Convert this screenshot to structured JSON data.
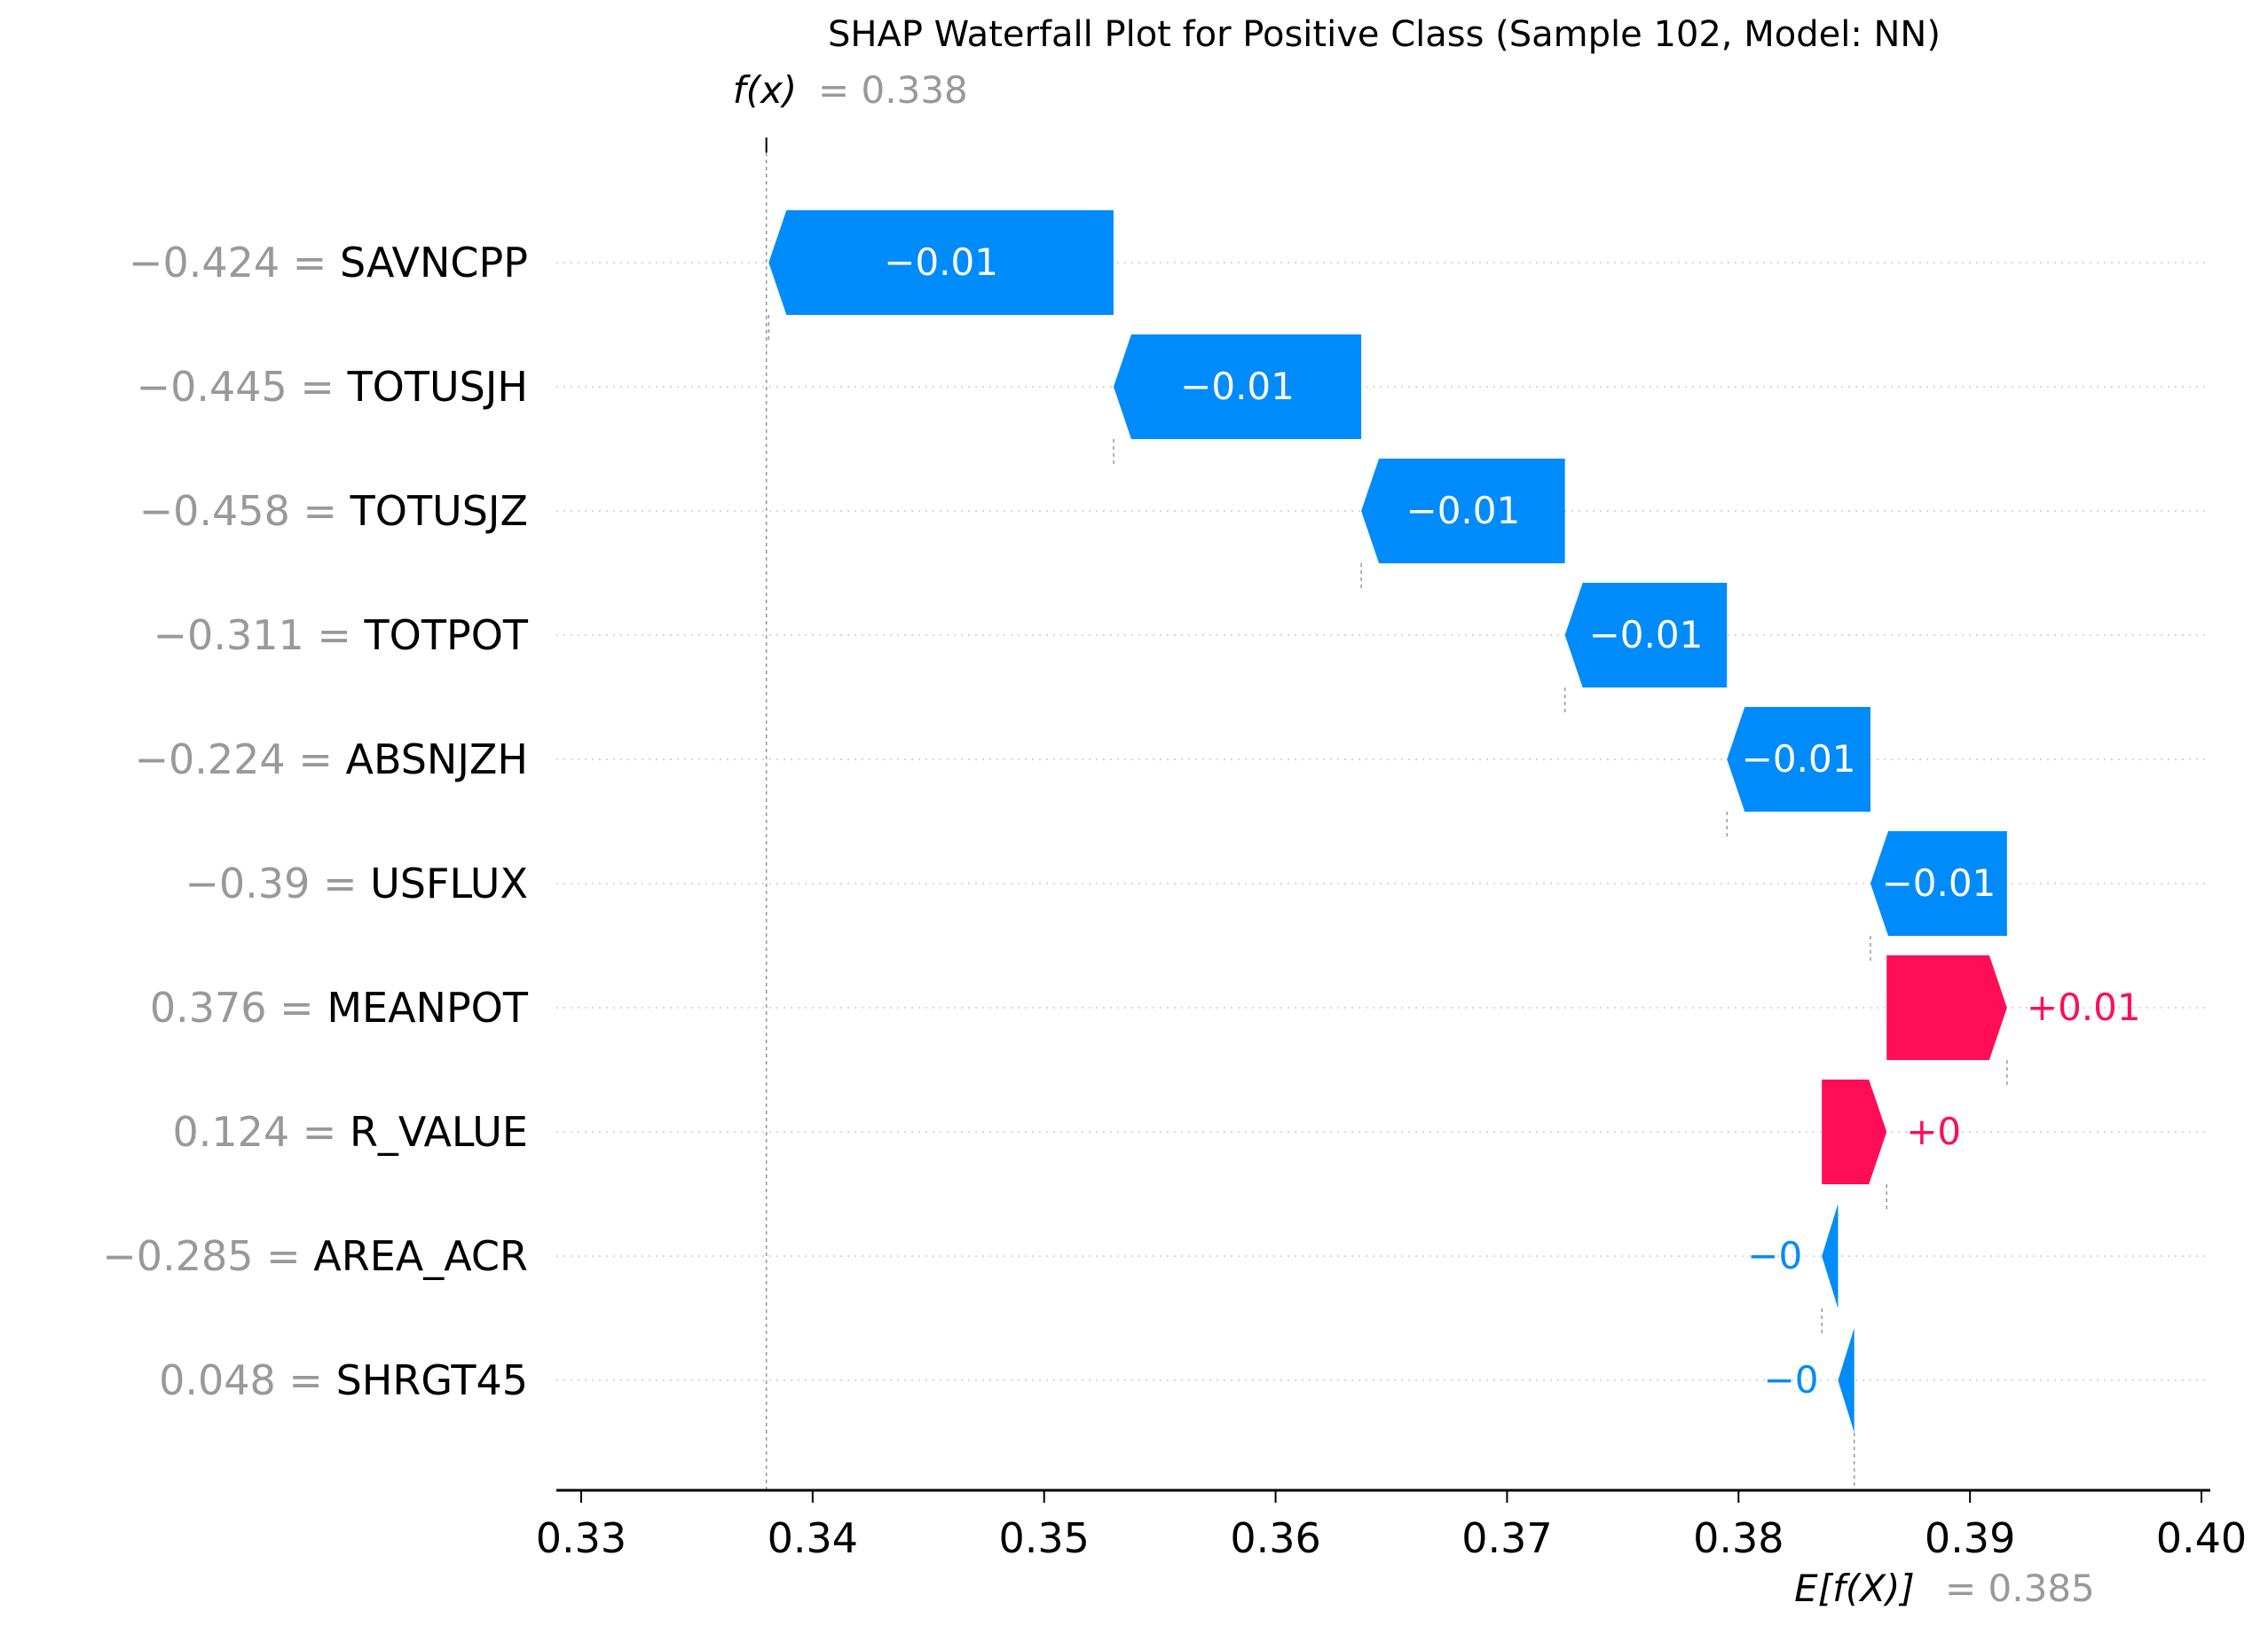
{
  "chart_data": {
    "type": "waterfall",
    "title": "SHAP Waterfall Plot for Positive Class (Sample 102, Model: NN)",
    "fx_label": "f(x)",
    "fx_value": 0.338,
    "fx_value_text": "= 0.338",
    "efx_label": "E[f(X)]",
    "efx_value": 0.385,
    "efx_value_text": "= 0.385",
    "xlim": [
      0.33,
      0.4
    ],
    "x_ticks": [
      0.33,
      0.34,
      0.35,
      0.36,
      0.37,
      0.38,
      0.39,
      0.4
    ],
    "x_tick_labels": [
      "0.33",
      "0.34",
      "0.35",
      "0.36",
      "0.37",
      "0.38",
      "0.39",
      "0.40"
    ],
    "grid": "horizontal dotted",
    "features": [
      {
        "value_text": "−0.424",
        "name": "SAVNCPP",
        "start": 0.353,
        "end": 0.3381,
        "label": "−0.01",
        "sign": "neg"
      },
      {
        "value_text": "−0.445",
        "name": "TOTUSJH",
        "start": 0.3637,
        "end": 0.353,
        "label": "−0.01",
        "sign": "neg"
      },
      {
        "value_text": "−0.458",
        "name": "TOTUSJZ",
        "start": 0.3725,
        "end": 0.3637,
        "label": "−0.01",
        "sign": "neg"
      },
      {
        "value_text": "−0.311",
        "name": "TOTPOT",
        "start": 0.3795,
        "end": 0.3725,
        "label": "−0.01",
        "sign": "neg"
      },
      {
        "value_text": "−0.224",
        "name": "ABSNJZH",
        "start": 0.3857,
        "end": 0.3795,
        "label": "−0.01",
        "sign": "neg"
      },
      {
        "value_text": "−0.39",
        "name": "USFLUX",
        "start": 0.3916,
        "end": 0.3857,
        "label": "−0.01",
        "sign": "neg"
      },
      {
        "value_text": "0.376",
        "name": "MEANPOT",
        "start": 0.3864,
        "end": 0.3916,
        "label": "+0.01",
        "sign": "pos"
      },
      {
        "value_text": "0.124",
        "name": "R_VALUE",
        "start": 0.3836,
        "end": 0.3864,
        "label": "+0",
        "sign": "pos"
      },
      {
        "value_text": "−0.285",
        "name": "AREA_ACR",
        "start": 0.3843,
        "end": 0.3836,
        "label": "−0",
        "sign": "neg"
      },
      {
        "value_text": "0.048",
        "name": "SHRGT45",
        "start": 0.385,
        "end": 0.3843,
        "label": "−0",
        "sign": "neg"
      }
    ],
    "colors": {
      "positive": "#ff0d57",
      "negative": "#008bfb",
      "grey_text": "#999999",
      "axis": "#000000",
      "grid": "#cccccc"
    }
  }
}
